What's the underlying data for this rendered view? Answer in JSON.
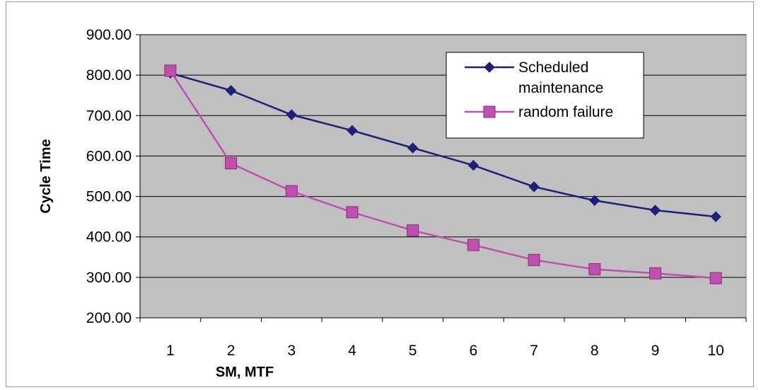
{
  "chart_data": {
    "type": "line",
    "title": "",
    "xlabel": "SM, MTF",
    "ylabel": "Cycle Time",
    "categories": [
      "1",
      "2",
      "3",
      "4",
      "5",
      "6",
      "7",
      "8",
      "9",
      "10"
    ],
    "ylim": [
      200,
      900
    ],
    "yticks": [
      "900.00",
      "800.00",
      "700.00",
      "600.00",
      "500.00",
      "400.00",
      "300.00",
      "200.00"
    ],
    "grid": true,
    "legend_position": "top-right",
    "plot_background": "#c0c0c0",
    "series": [
      {
        "name": "Scheduled maintenance",
        "legend_lines": [
          "Scheduled",
          "maintenance"
        ],
        "marker": "diamond",
        "color": "#1f1f7a",
        "values": [
          805,
          762,
          702,
          663,
          620,
          577,
          524,
          490,
          466,
          450
        ]
      },
      {
        "name": "random failure",
        "legend_lines": [
          "random failure"
        ],
        "marker": "square",
        "color": "#c050b0",
        "values": [
          811,
          582,
          513,
          461,
          416,
          380,
          343,
          320,
          310,
          298
        ]
      }
    ]
  }
}
